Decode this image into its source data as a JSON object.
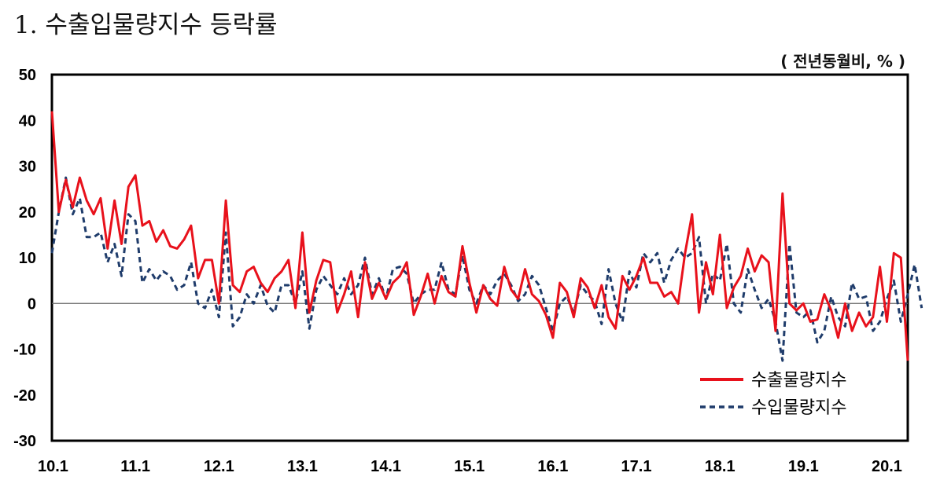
{
  "title": "1.  수출입물량지수 등락률",
  "unit": "( 전년동월비, % )",
  "colors": {
    "export": "#e8111b",
    "import": "#1f3c6b"
  },
  "chart_data": {
    "type": "line",
    "title": "1.  수출입물량지수 등락률",
    "unit_label": "( 전년동월비, % )",
    "ylim": [
      -30,
      50
    ],
    "y_ticks": [
      50,
      40,
      30,
      20,
      10,
      0,
      -10,
      -20,
      -30
    ],
    "x_ticks": [
      "10.1",
      "11.1",
      "12.1",
      "13.1",
      "14.1",
      "15.1",
      "16.1",
      "17.1",
      "18.1",
      "19.1",
      "20.1"
    ],
    "legend": "bottom-right",
    "grid": false,
    "series": [
      {
        "name": "수출물량지수",
        "style": "solid",
        "values": [
          42,
          20,
          27,
          21,
          27.5,
          22.5,
          19.5,
          23,
          12,
          22.5,
          13,
          25.5,
          28,
          17,
          18,
          13.5,
          16,
          12.5,
          12,
          14,
          17,
          5.5,
          9.5,
          9.5,
          0,
          22.5,
          4,
          2.5,
          7,
          8,
          4.5,
          2.5,
          5.5,
          7,
          9.5,
          -1,
          15.5,
          -2,
          5,
          9.5,
          9,
          -2,
          2,
          7,
          -3,
          9,
          1,
          4.5,
          1,
          4.5,
          6,
          9,
          -2.5,
          1.5,
          6.5,
          0,
          6,
          2.5,
          1.5,
          12.5,
          4.5,
          -2,
          4,
          1,
          -0.5,
          8,
          3,
          1,
          7.5,
          2,
          0.5,
          -2.5,
          -7.5,
          4.5,
          2.5,
          -3,
          5.5,
          3.5,
          -1,
          4,
          -3,
          -5.5,
          6,
          3,
          6,
          10,
          4.5,
          4.5,
          1.5,
          2.5,
          0,
          11,
          19.5,
          -2,
          9,
          2,
          15,
          -1,
          3.5,
          6,
          12,
          7,
          10.5,
          9,
          -6,
          24,
          0,
          -1.5,
          0,
          -4,
          -3.5,
          2,
          -1.5,
          -7.5,
          0,
          -6,
          -2,
          -5,
          -3,
          8,
          -4,
          11,
          10,
          -12.5
        ]
      },
      {
        "name": "수입물량지수",
        "style": "dashed",
        "values": [
          11,
          20,
          27.5,
          19.5,
          23,
          14.5,
          14.5,
          15.5,
          9,
          13,
          6,
          19.5,
          18,
          4.5,
          7.5,
          5,
          7,
          6,
          3,
          4,
          9,
          0,
          -1,
          3,
          -3,
          15.5,
          -5,
          -3,
          2,
          0,
          4,
          -0.5,
          -2,
          4,
          4,
          0,
          7,
          -5.5,
          3,
          6,
          4,
          2,
          5.5,
          2,
          4,
          10,
          2,
          5.5,
          1,
          7.5,
          8,
          6.5,
          0,
          2,
          3,
          3,
          9,
          3,
          2,
          10.5,
          3,
          0,
          4,
          2,
          5,
          6.5,
          4,
          0.5,
          2,
          6,
          4,
          -1,
          -6,
          0,
          1.5,
          -2,
          4,
          2,
          0.5,
          -4.5,
          7.5,
          0,
          -4,
          7,
          3.5,
          11,
          9,
          11,
          4.5,
          9.5,
          12,
          10,
          11,
          14.5,
          0,
          6.5,
          5,
          13,
          0,
          -2,
          7.5,
          3,
          -1,
          1,
          -4,
          -12.5,
          13,
          -2,
          -3,
          -1.5,
          -8.5,
          -6,
          1.5,
          -3,
          -5,
          4.5,
          1,
          1.5,
          -6,
          -4,
          1,
          5,
          -4,
          2,
          8.5,
          -1
        ]
      }
    ]
  }
}
